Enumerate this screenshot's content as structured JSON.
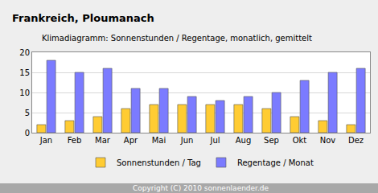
{
  "chart_data": {
    "type": "bar",
    "title": "Frankreich, Ploumanach",
    "subtitle": "Klimadiagramm: Sonnenstunden / Regentage, monatlich, gemittelt",
    "categories": [
      "Jan",
      "Feb",
      "Mar",
      "Apr",
      "Mai",
      "Jun",
      "Jul",
      "Aug",
      "Sep",
      "Okt",
      "Nov",
      "Dez"
    ],
    "series": [
      {
        "name": "Sonnenstunden / Tag",
        "color": "#ffcc33",
        "values": [
          2,
          3,
          4,
          6,
          7,
          7,
          7,
          7,
          6,
          4,
          3,
          2
        ]
      },
      {
        "name": "Regentage / Monat",
        "color": "#7b7bff",
        "values": [
          18,
          15,
          16,
          11,
          11,
          9,
          8,
          9,
          10,
          13,
          15,
          16
        ]
      }
    ],
    "ylim": [
      0,
      20
    ],
    "yticks": [
      0,
      5,
      10,
      15,
      20
    ],
    "grid": true,
    "legend": "bottom",
    "annotations": [
      "Copyright (C) 2010 sonnenlaender.de"
    ]
  }
}
